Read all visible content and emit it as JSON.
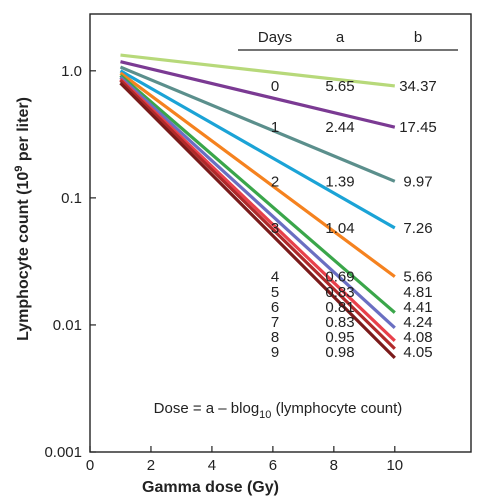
{
  "chart_data": {
    "type": "line",
    "xlabel": "Gamma dose (Gy)",
    "ylabel": "Lymphocyte count (10",
    "ylabel_sup": "9",
    "ylabel_suffix": " per liter)",
    "yscale": "log",
    "xlim": [
      0,
      12.5
    ],
    "ylim": [
      0.001,
      2.8
    ],
    "x_ticks": [
      0,
      2,
      4,
      6,
      8,
      10
    ],
    "x_tick_labels": [
      "0",
      "2",
      "4",
      "6",
      "8",
      "10"
    ],
    "y_ticks": [
      1.0,
      0.1,
      0.01,
      0.001
    ],
    "y_tick_labels": [
      "1.0",
      "0.1",
      "0.01",
      "0.001"
    ],
    "grid": false,
    "table_headers": [
      "Days",
      "a",
      "b"
    ],
    "series": [
      {
        "name": "0",
        "a": "5.65",
        "b": "34.37",
        "color": "#b7d97a",
        "x": [
          1,
          10
        ],
        "y": [
          1.33,
          0.76
        ]
      },
      {
        "name": "1",
        "a": "2.44",
        "b": "17.45",
        "color": "#7b3a93",
        "x": [
          1,
          10
        ],
        "y": [
          1.18,
          0.36
        ]
      },
      {
        "name": "2",
        "a": "1.39",
        "b": "9.97",
        "color": "#5b8f8c",
        "x": [
          1,
          10
        ],
        "y": [
          1.07,
          0.135
        ]
      },
      {
        "name": "3",
        "a": "1.04",
        "b": "7.26",
        "color": "#1ba3d6",
        "x": [
          1,
          10
        ],
        "y": [
          1.0,
          0.058
        ]
      },
      {
        "name": "4",
        "a": "0.69",
        "b": "5.66",
        "color": "#f5821f",
        "x": [
          1,
          10
        ],
        "y": [
          0.96,
          0.024
        ]
      },
      {
        "name": "5",
        "a": "0.83",
        "b": "4.81",
        "color": "#3aa64a",
        "x": [
          1,
          10
        ],
        "y": [
          0.92,
          0.0125
        ]
      },
      {
        "name": "6",
        "a": "0.81",
        "b": "4.41",
        "color": "#6a6fc2",
        "x": [
          1,
          10
        ],
        "y": [
          0.89,
          0.0095
        ]
      },
      {
        "name": "7",
        "a": "0.83",
        "b": "4.24",
        "color": "#e8404a",
        "x": [
          1,
          10
        ],
        "y": [
          0.86,
          0.0075
        ]
      },
      {
        "name": "8",
        "a": "0.95",
        "b": "4.08",
        "color": "#b02a2a",
        "x": [
          1,
          10
        ],
        "y": [
          0.84,
          0.0065
        ]
      },
      {
        "name": "9",
        "a": "0.98",
        "b": "4.05",
        "color": "#7a1a1a",
        "x": [
          1,
          10
        ],
        "y": [
          0.8,
          0.0055
        ]
      }
    ],
    "formula": {
      "prefix": "Dose = a – blog",
      "sub": "10",
      "suffix": " (lymphocyte count)"
    }
  }
}
